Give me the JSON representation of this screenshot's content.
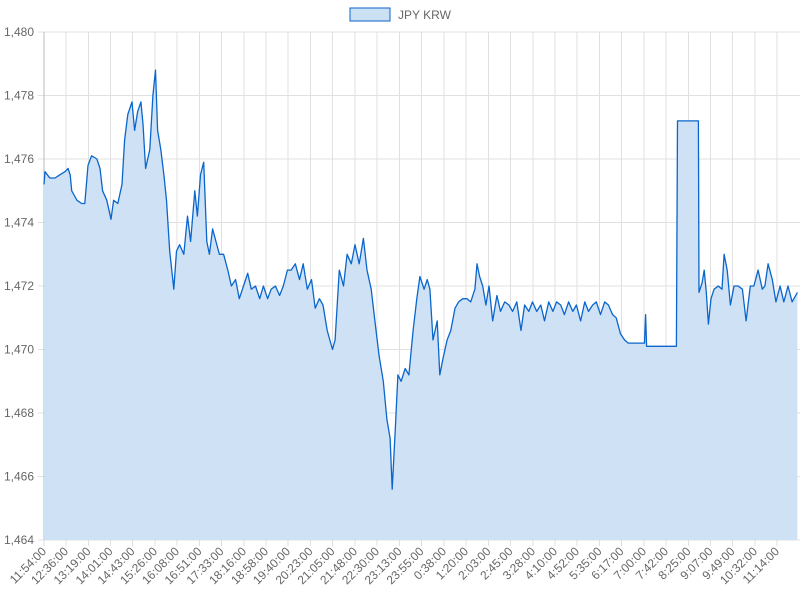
{
  "chart_data": {
    "type": "area",
    "title": "",
    "xlabel": "",
    "ylabel": "",
    "legend": {
      "position": "top",
      "entries": [
        "JPY KRW"
      ]
    },
    "grid": true,
    "ylim": [
      1464,
      1480
    ],
    "y_ticks": [
      "1,464",
      "1,466",
      "1,468",
      "1,470",
      "1,472",
      "1,474",
      "1,476",
      "1,478",
      "1,480"
    ],
    "y_tick_values": [
      1464,
      1466,
      1468,
      1470,
      1472,
      1474,
      1476,
      1478,
      1480
    ],
    "x_ticks": [
      "11:54:00",
      "12:36:00",
      "13:19:00",
      "14:01:00",
      "14:43:00",
      "15:26:00",
      "16:08:00",
      "16:51:00",
      "17:33:00",
      "18:16:00",
      "18:58:00",
      "19:40:00",
      "20:23:00",
      "21:05:00",
      "21:48:00",
      "22:30:00",
      "23:13:00",
      "23:55:00",
      "0:38:00",
      "1:20:00",
      "2:03:00",
      "2:45:00",
      "3:28:00",
      "4:10:00",
      "4:52:00",
      "5:35:00",
      "6:17:00",
      "7:00:00",
      "7:42:00",
      "8:25:00",
      "9:07:00",
      "9:49:00",
      "10:32:00",
      "11:14:00"
    ],
    "colors": {
      "line": "#0a66cc",
      "fill": "#cce0f4",
      "grid": "#e0e0e0"
    },
    "series": [
      {
        "name": "JPY KRW",
        "points": [
          [
            "11:54",
            1475.2
          ],
          [
            "11:56",
            1475.6
          ],
          [
            "12:05",
            1475.4
          ],
          [
            "12:15",
            1475.4
          ],
          [
            "12:24",
            1475.5
          ],
          [
            "12:34",
            1475.6
          ],
          [
            "12:40",
            1475.7
          ],
          [
            "12:44",
            1475.5
          ],
          [
            "12:47",
            1475.0
          ],
          [
            "12:57",
            1474.7
          ],
          [
            "13:06",
            1474.6
          ],
          [
            "13:12",
            1474.6
          ],
          [
            "13:18",
            1475.8
          ],
          [
            "13:25",
            1476.1
          ],
          [
            "13:35",
            1476.0
          ],
          [
            "13:41",
            1475.7
          ],
          [
            "13:46",
            1475.0
          ],
          [
            "13:54",
            1474.7
          ],
          [
            "14:02",
            1474.1
          ],
          [
            "14:07",
            1474.7
          ],
          [
            "14:15",
            1474.6
          ],
          [
            "14:23",
            1475.2
          ],
          [
            "14:28",
            1476.6
          ],
          [
            "14:34",
            1477.4
          ],
          [
            "14:42",
            1477.8
          ],
          [
            "14:47",
            1476.9
          ],
          [
            "14:53",
            1477.5
          ],
          [
            "14:59",
            1477.8
          ],
          [
            "15:03",
            1477.1
          ],
          [
            "15:08",
            1475.7
          ],
          [
            "15:16",
            1476.3
          ],
          [
            "15:22",
            1478.0
          ],
          [
            "15:27",
            1478.8
          ],
          [
            "15:31",
            1476.9
          ],
          [
            "15:37",
            1476.3
          ],
          [
            "15:43",
            1475.5
          ],
          [
            "15:48",
            1474.7
          ],
          [
            "15:54",
            1473.1
          ],
          [
            "16:02",
            1471.9
          ],
          [
            "16:07",
            1473.1
          ],
          [
            "16:13",
            1473.3
          ],
          [
            "16:21",
            1473.0
          ],
          [
            "16:28",
            1474.2
          ],
          [
            "16:34",
            1473.4
          ],
          [
            "16:42",
            1475.0
          ],
          [
            "16:47",
            1474.2
          ],
          [
            "16:53",
            1475.5
          ],
          [
            "16:59",
            1475.9
          ],
          [
            "17:05",
            1473.4
          ],
          [
            "17:10",
            1473.0
          ],
          [
            "17:16",
            1473.8
          ],
          [
            "17:24",
            1473.3
          ],
          [
            "17:29",
            1473.0
          ],
          [
            "17:37",
            1473.0
          ],
          [
            "17:45",
            1472.5
          ],
          [
            "17:52",
            1472.0
          ],
          [
            "18:00",
            1472.2
          ],
          [
            "18:07",
            1471.6
          ],
          [
            "18:15",
            1472.0
          ],
          [
            "18:23",
            1472.4
          ],
          [
            "18:30",
            1471.9
          ],
          [
            "18:38",
            1472.0
          ],
          [
            "18:46",
            1471.6
          ],
          [
            "18:53",
            1472.0
          ],
          [
            "19:01",
            1471.6
          ],
          [
            "19:08",
            1471.9
          ],
          [
            "19:16",
            1472.0
          ],
          [
            "19:24",
            1471.7
          ],
          [
            "19:31",
            1472.0
          ],
          [
            "19:39",
            1472.5
          ],
          [
            "19:46",
            1472.5
          ],
          [
            "19:54",
            1472.7
          ],
          [
            "20:02",
            1472.2
          ],
          [
            "20:09",
            1472.7
          ],
          [
            "20:17",
            1471.9
          ],
          [
            "20:25",
            1472.2
          ],
          [
            "20:32",
            1471.3
          ],
          [
            "20:40",
            1471.6
          ],
          [
            "20:47",
            1471.4
          ],
          [
            "20:55",
            1470.6
          ],
          [
            "21:05",
            1470.0
          ],
          [
            "21:10",
            1470.3
          ],
          [
            "21:18",
            1472.5
          ],
          [
            "21:26",
            1472.0
          ],
          [
            "21:33",
            1473.0
          ],
          [
            "21:41",
            1472.7
          ],
          [
            "21:48",
            1473.3
          ],
          [
            "21:56",
            1472.7
          ],
          [
            "22:04",
            1473.5
          ],
          [
            "22:11",
            1472.5
          ],
          [
            "22:19",
            1471.9
          ],
          [
            "22:26",
            1470.9
          ],
          [
            "22:34",
            1469.8
          ],
          [
            "22:42",
            1469.0
          ],
          [
            "22:49",
            1467.8
          ],
          [
            "22:55",
            1467.2
          ],
          [
            "22:59",
            1465.6
          ],
          [
            "23:05",
            1467.5
          ],
          [
            "23:10",
            1469.2
          ],
          [
            "23:16",
            1469.0
          ],
          [
            "23:24",
            1469.4
          ],
          [
            "23:31",
            1469.2
          ],
          [
            "23:39",
            1470.6
          ],
          [
            "23:46",
            1471.6
          ],
          [
            "23:52",
            1472.3
          ],
          [
            "0:00",
            1471.9
          ],
          [
            "0:06",
            1472.2
          ],
          [
            "0:11",
            1471.9
          ],
          [
            "0:17",
            1470.3
          ],
          [
            "0:25",
            1470.9
          ],
          [
            "0:30",
            1469.2
          ],
          [
            "0:36",
            1469.7
          ],
          [
            "0:44",
            1470.3
          ],
          [
            "0:51",
            1470.6
          ],
          [
            "0:59",
            1471.3
          ],
          [
            "1:06",
            1471.5
          ],
          [
            "1:14",
            1471.6
          ],
          [
            "1:22",
            1471.6
          ],
          [
            "1:29",
            1471.5
          ],
          [
            "1:37",
            1471.9
          ],
          [
            "1:41",
            1472.7
          ],
          [
            "1:46",
            1472.3
          ],
          [
            "1:52",
            1472.0
          ],
          [
            "1:58",
            1471.4
          ],
          [
            "2:04",
            1472.0
          ],
          [
            "2:11",
            1470.9
          ],
          [
            "2:19",
            1471.7
          ],
          [
            "2:26",
            1471.2
          ],
          [
            "2:34",
            1471.5
          ],
          [
            "2:42",
            1471.4
          ],
          [
            "2:49",
            1471.2
          ],
          [
            "2:57",
            1471.5
          ],
          [
            "3:05",
            1470.6
          ],
          [
            "3:12",
            1471.4
          ],
          [
            "3:20",
            1471.2
          ],
          [
            "3:27",
            1471.5
          ],
          [
            "3:35",
            1471.2
          ],
          [
            "3:43",
            1471.4
          ],
          [
            "3:50",
            1470.9
          ],
          [
            "3:58",
            1471.5
          ],
          [
            "4:06",
            1471.2
          ],
          [
            "4:13",
            1471.5
          ],
          [
            "4:21",
            1471.4
          ],
          [
            "4:28",
            1471.1
          ],
          [
            "4:36",
            1471.5
          ],
          [
            "4:44",
            1471.2
          ],
          [
            "4:51",
            1471.4
          ],
          [
            "4:59",
            1470.9
          ],
          [
            "5:07",
            1471.5
          ],
          [
            "5:14",
            1471.2
          ],
          [
            "5:22",
            1471.4
          ],
          [
            "5:29",
            1471.5
          ],
          [
            "5:37",
            1471.1
          ],
          [
            "5:45",
            1471.5
          ],
          [
            "5:52",
            1471.4
          ],
          [
            "6:00",
            1471.1
          ],
          [
            "6:07",
            1471.0
          ],
          [
            "6:15",
            1470.5
          ],
          [
            "6:23",
            1470.3
          ],
          [
            "6:30",
            1470.2
          ],
          [
            "6:49",
            1470.2
          ],
          [
            "7:01",
            1470.2
          ],
          [
            "7:03",
            1471.1
          ],
          [
            "7:05",
            1470.1
          ],
          [
            "7:12",
            1470.1
          ],
          [
            "8:02",
            1470.1
          ],
          [
            "8:04",
            1477.2
          ],
          [
            "8:44",
            1477.2
          ],
          [
            "8:45",
            1471.8
          ],
          [
            "8:51",
            1472.1
          ],
          [
            "8:55",
            1472.5
          ],
          [
            "8:59",
            1471.8
          ],
          [
            "9:03",
            1470.8
          ],
          [
            "9:08",
            1471.6
          ],
          [
            "9:14",
            1471.9
          ],
          [
            "9:22",
            1472.0
          ],
          [
            "9:29",
            1471.9
          ],
          [
            "9:33",
            1473.0
          ],
          [
            "9:39",
            1472.5
          ],
          [
            "9:45",
            1471.4
          ],
          [
            "9:52",
            1472.0
          ],
          [
            "10:00",
            1472.0
          ],
          [
            "10:08",
            1471.9
          ],
          [
            "10:15",
            1470.9
          ],
          [
            "10:23",
            1472.0
          ],
          [
            "10:30",
            1472.0
          ],
          [
            "10:38",
            1472.5
          ],
          [
            "10:46",
            1471.9
          ],
          [
            "10:51",
            1472.0
          ],
          [
            "10:57",
            1472.7
          ],
          [
            "11:05",
            1472.2
          ],
          [
            "11:12",
            1471.5
          ],
          [
            "11:20",
            1472.0
          ],
          [
            "11:27",
            1471.5
          ],
          [
            "11:35",
            1472.0
          ],
          [
            "11:43",
            1471.5
          ],
          [
            "11:53",
            1471.8
          ]
        ]
      }
    ]
  }
}
